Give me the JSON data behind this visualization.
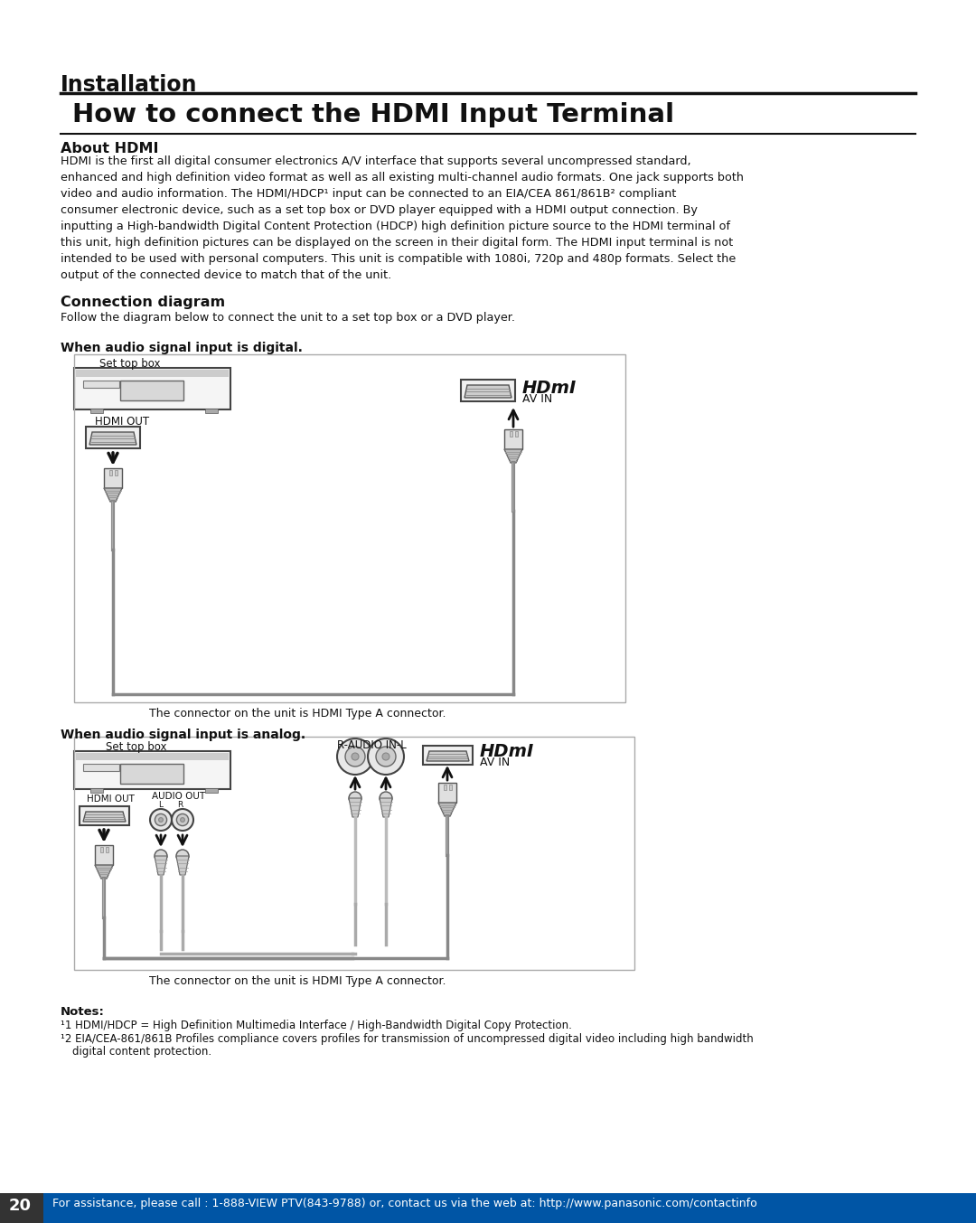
{
  "page_bg": "#ffffff",
  "section_label": "Installation",
  "title": "How to connect the HDMI Input Terminal",
  "about_hdmi_heading": "About HDMI",
  "about_hdmi_body": "HDMI is the first all digital consumer electronics A/V interface that supports several uncompressed standard,\nenhanced and high definition video format as well as all existing multi-channel audio formats. One jack supports both\nvideo and audio information. The HDMI/HDCP*1 input can be connected to an EIA/CEA 861/861B*2 compliant\nconsumer electronic device, such as a set top box or DVD player equipped with a HDMI output connection. By\ninputting a High-bandwidth Digital Content Protection (HDCP) high definition picture source to the HDMI terminal of\nthis unit, high definition pictures can be displayed on the screen in their digital form. The HDMI input terminal is not\nintended to be used with personal computers. This unit is compatible with 1080i, 720p and 480p formats. Select the\noutput of the connected device to match that of the unit.",
  "conn_diag_heading": "Connection diagram",
  "conn_diag_body": "Follow the diagram below to connect the unit to a set top box or a DVD player.",
  "digital_heading": "When audio signal input is digital.",
  "analog_heading": "When audio signal input is analog.",
  "connector_note": "The connector on the unit is HDMI Type A connector.",
  "notes_heading": "Notes:",
  "note1": "*1 HDMI/HDCP = High Definition Multimedia Interface / High-Bandwidth Digital Copy Protection.",
  "note2_line1": "*2 EIA/CEA-861/861B Profiles compliance covers profiles for transmission of uncompressed digital video including high bandwidth",
  "note2_line2": "   digital content protection.",
  "footer_text": "For assistance, please call : 1-888-VIEW PTV(843-9788) or, contact us via the web at: http://www.panasonic.com/contactinfo",
  "page_number": "20",
  "footer_bg": "#0055a5",
  "footer_text_color": "#ffffff",
  "dark_box_bg": "#333333"
}
